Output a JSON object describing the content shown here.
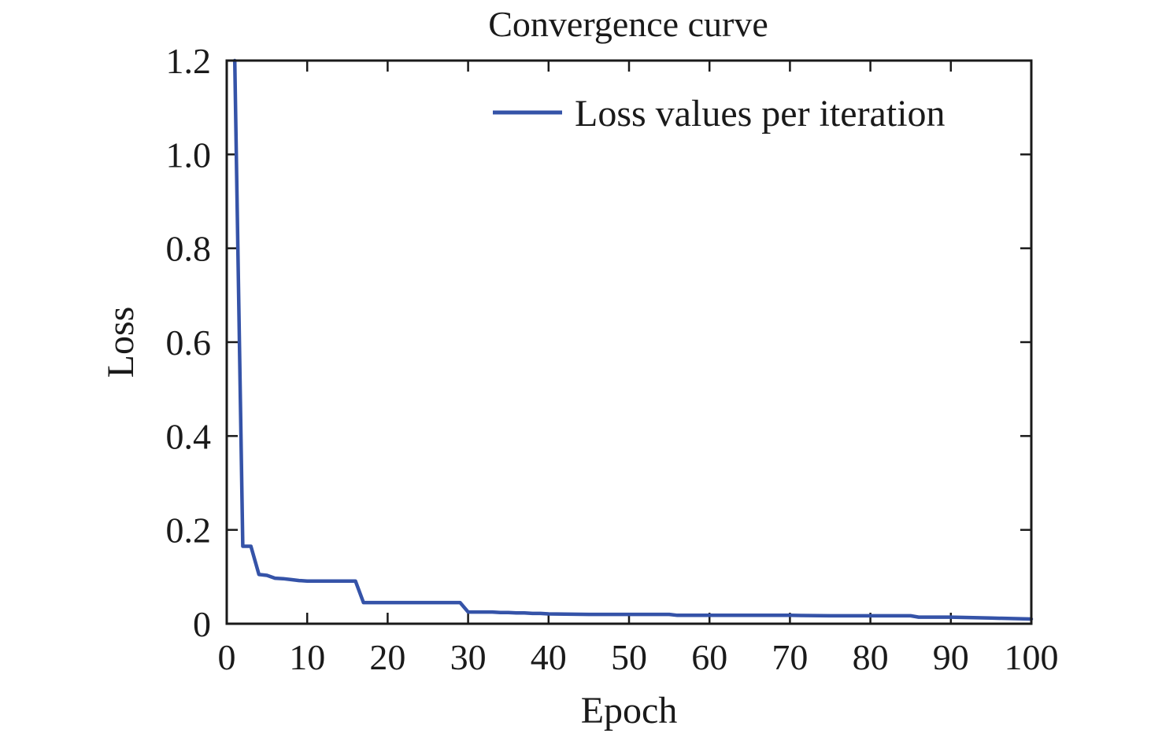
{
  "chart_data": {
    "type": "line",
    "title": "Convergence curve",
    "xlabel": "Epoch",
    "ylabel": "Loss",
    "xlim": [
      0,
      100
    ],
    "ylim": [
      0,
      1.2
    ],
    "x_ticks": [
      0,
      10,
      20,
      30,
      40,
      50,
      60,
      70,
      80,
      90,
      100
    ],
    "x_tick_labels": [
      "0",
      "10",
      "20",
      "30",
      "40",
      "50",
      "60",
      "70",
      "80",
      "90",
      "100"
    ],
    "y_ticks": [
      0,
      0.2,
      0.4,
      0.6,
      0.8,
      1.0,
      1.2
    ],
    "y_tick_labels": [
      "0",
      "0.2",
      "0.4",
      "0.6",
      "0.8",
      "1.0",
      "1.2"
    ],
    "grid": false,
    "legend_position": "top-right",
    "series": [
      {
        "name": "Loss values per iteration",
        "color": "#3553a8",
        "x": [
          1,
          2,
          3,
          4,
          5,
          6,
          7,
          8,
          9,
          10,
          11,
          12,
          13,
          14,
          15,
          16,
          17,
          18,
          19,
          20,
          21,
          22,
          23,
          24,
          25,
          26,
          27,
          28,
          29,
          30,
          31,
          32,
          33,
          34,
          35,
          36,
          37,
          38,
          39,
          40,
          45,
          50,
          55,
          56,
          60,
          65,
          70,
          75,
          80,
          85,
          86,
          90,
          95,
          100
        ],
        "values": [
          1.2,
          0.165,
          0.165,
          0.105,
          0.103,
          0.097,
          0.096,
          0.094,
          0.092,
          0.091,
          0.091,
          0.091,
          0.091,
          0.091,
          0.091,
          0.091,
          0.045,
          0.045,
          0.045,
          0.045,
          0.045,
          0.045,
          0.045,
          0.045,
          0.045,
          0.045,
          0.045,
          0.045,
          0.045,
          0.025,
          0.025,
          0.025,
          0.025,
          0.024,
          0.024,
          0.023,
          0.023,
          0.022,
          0.022,
          0.021,
          0.02,
          0.02,
          0.02,
          0.018,
          0.018,
          0.018,
          0.018,
          0.017,
          0.017,
          0.017,
          0.014,
          0.014,
          0.012,
          0.01
        ]
      }
    ]
  }
}
